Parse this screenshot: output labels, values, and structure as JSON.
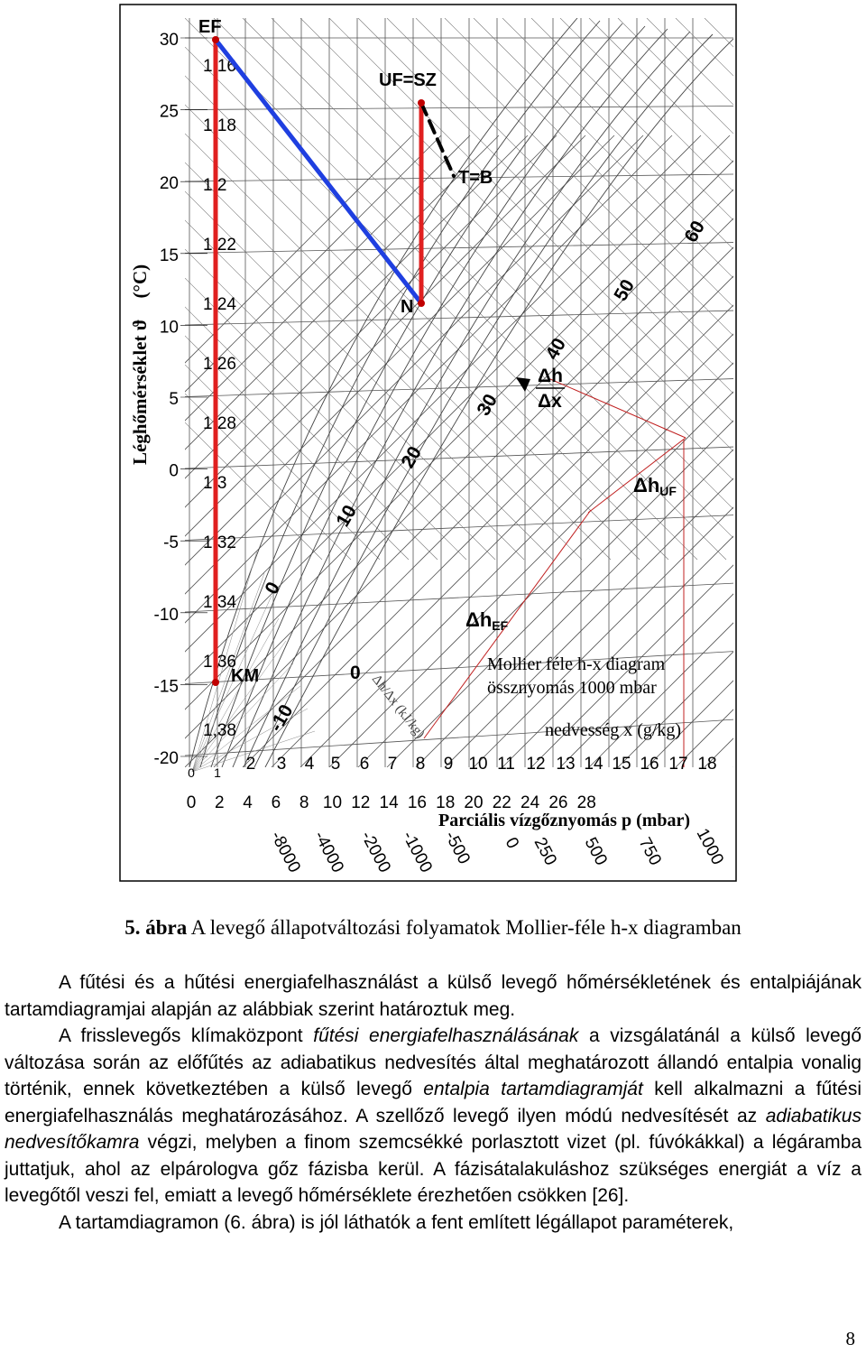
{
  "chart_data": {
    "type": "diagram",
    "title": "Mollier féle h-x diagram",
    "subtitle": "össznyomás 1000 mbar",
    "y_axis_label": "Léghőmérséklet",
    "y_axis_symbol": "ϑ",
    "y_axis_unit": "(°C)",
    "y_ticks": [
      "30",
      "25",
      "20",
      "15",
      "10",
      "5",
      "0",
      "-5",
      "-10",
      "-15",
      "-20"
    ],
    "density_labels": [
      "1 16",
      "1 18",
      "1 2",
      "1 22",
      "1 24",
      "1 26",
      "1 28",
      "1 3",
      "1 32",
      "1 34",
      "1,36",
      "1,38"
    ],
    "humidity_label": "nedvesség  x (g/kg)",
    "humidity_ticks": [
      "0",
      "1",
      "2",
      "3",
      "4",
      "5",
      "6",
      "7",
      "8",
      "9",
      "10",
      "11",
      "12",
      "13",
      "14",
      "15",
      "16",
      "17",
      "18"
    ],
    "pressure_label": "Parciális vízgőznyomás p (mbar)",
    "pressure_ticks": [
      "0",
      "2",
      "4",
      "6",
      "8",
      "10",
      "12",
      "14",
      "16",
      "18",
      "20",
      "22",
      "24",
      "26",
      "28"
    ],
    "dh_dx_ticks": [
      "-8000",
      "-4000",
      "-2000",
      "-1000",
      "-500",
      "0",
      "250",
      "500",
      "750",
      "1000"
    ],
    "enthalpy_labels": [
      "-10",
      "0",
      "10",
      "20",
      "30",
      "40",
      "50",
      "60"
    ],
    "dh_dx_axis_label": "Δh/Δx (kJ/kg)",
    "points": {
      "EF": "EF",
      "UFSZ": "UF=SZ",
      "TB": "T=B",
      "N": "N",
      "KM": "KM"
    },
    "process_lines": [
      {
        "from": "KM",
        "to": "EF",
        "color": "#e02020"
      },
      {
        "from": "EF",
        "to": "N",
        "color": "#1f3fe0"
      },
      {
        "from": "N",
        "to": "UF=SZ",
        "color": "#e02020"
      },
      {
        "from": "UF=SZ",
        "to": "T=B",
        "style": "dashed",
        "color": "#000000"
      }
    ],
    "annotations": {
      "dh_ef": "Δh",
      "dh_ef_sub": "EF",
      "dh_uf": "Δh",
      "dh_uf_sub": "UF",
      "ratio_num": "Δh",
      "ratio_den": "Δx"
    }
  },
  "caption": {
    "number": "5. ábra",
    "text": " A levegő állapotváltozási folyamatok Mollier-féle h-x diagramban"
  },
  "body": {
    "p1": "A fűtési és a hűtési energiafelhasználást a külső levegő hőmérsékletének és entalpiájának tartamdiagramjai alapján az alábbiak szerint határoztuk meg.",
    "p2_a": "A frisslevegős klímaközpont ",
    "p2_b": "fűtési energiafelhasználásának",
    "p2_c": " a vizsgálatánál a külső levegő változása során az előfűtés az adiabatikus nedvesítés által meghatározott állandó entalpia vonalig történik, ennek következtében a külső levegő ",
    "p2_d": "entalpia tartamdiagramját",
    "p2_e": " kell alkalmazni a fűtési energiafelhasználás meghatározásához. A szellőző levegő ilyen módú nedvesítését az ",
    "p2_f": "adiabatikus nedvesítőkamra",
    "p2_g": " végzi, melyben a finom szemcsékké porlasztott vizet (pl. fúvókákkal) a légáramba juttatjuk, ahol az elpárologva gőz fázisba kerül. A fázisátalakuláshoz szükséges energiát a víz a levegőtől veszi fel, emiatt a levegő hőmérséklete érezhetően csökken [26].",
    "p3": "A tartamdiagramon (6. ábra) is jól láthatók a fent említett légállapot paraméterek,"
  },
  "page_number": "8"
}
